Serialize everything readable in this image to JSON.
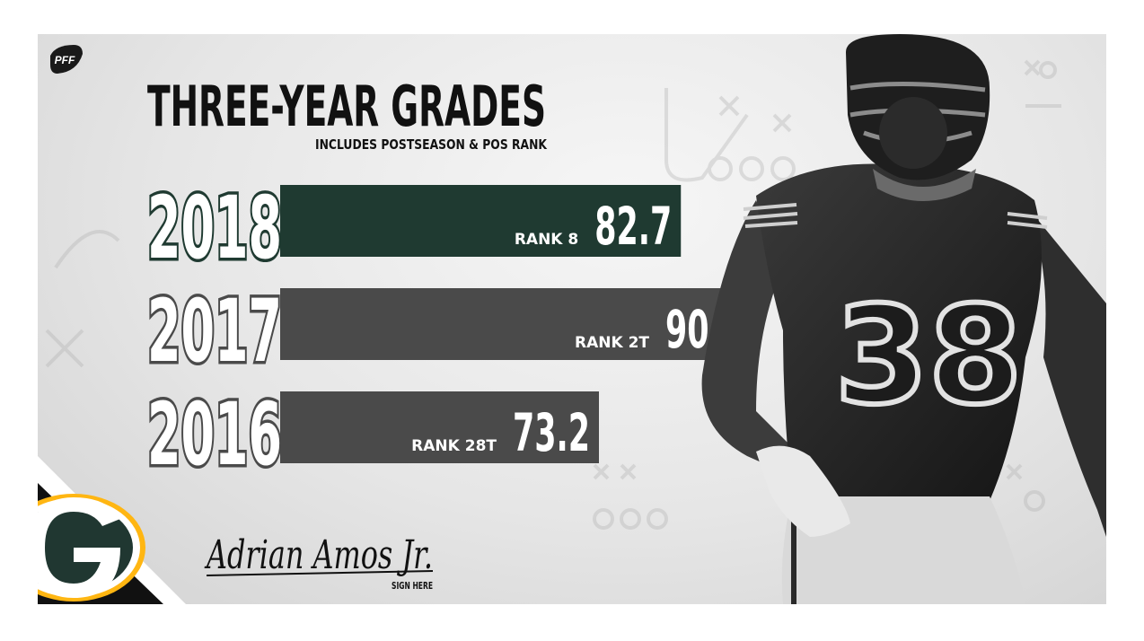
{
  "brand": {
    "logo_text": "PFF"
  },
  "header": {
    "title": "THREE-YEAR GRADES",
    "subtitle": "INCLUDES POSTSEASON & POS RANK"
  },
  "colors": {
    "accent_green": "#1f3a31",
    "bar_gray": "#4a4a4a",
    "team_green": "#203731",
    "team_gold": "#ffb612",
    "background": "#e6e6e6"
  },
  "chart_data": {
    "type": "bar",
    "title": "THREE-YEAR GRADES",
    "subtitle": "INCLUDES POSTSEASON & POS RANK",
    "categories": [
      "2018",
      "2017",
      "2016"
    ],
    "values": [
      82.7,
      90.9,
      73.2
    ],
    "ranks": [
      "RANK 8",
      "RANK 2T",
      "RANK 28T"
    ],
    "highlight_category": "2018",
    "orientation": "horizontal"
  },
  "player": {
    "signature": "Adrian Amos Jr.",
    "sign_label": "SIGN HERE",
    "jersey_number": "38"
  }
}
